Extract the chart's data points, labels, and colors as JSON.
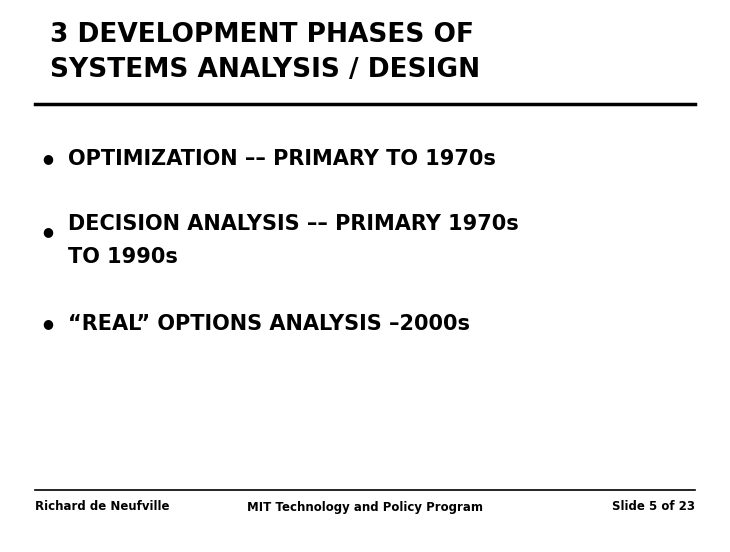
{
  "title_line1": "3 DEVELOPMENT PHASES OF",
  "title_line2": "SYSTEMS ANALYSIS / DESIGN",
  "bullet1": "OPTIMIZATION –– PRIMARY TO 1970s",
  "bullet2_line1": "DECISION ANALYSIS –– PRIMARY 1970s",
  "bullet2_line2": "TO 1990s",
  "bullet3": "“REAL” OPTIONS ANALYSIS –2000s",
  "footer_left": "Richard de Neufville",
  "footer_center": "MIT Technology and Policy Program",
  "footer_right": "Slide 5 of 23",
  "background_color": "#ffffff",
  "text_color": "#000000",
  "title_fontsize": 19,
  "bullet_fontsize": 15,
  "footer_fontsize": 8.5
}
